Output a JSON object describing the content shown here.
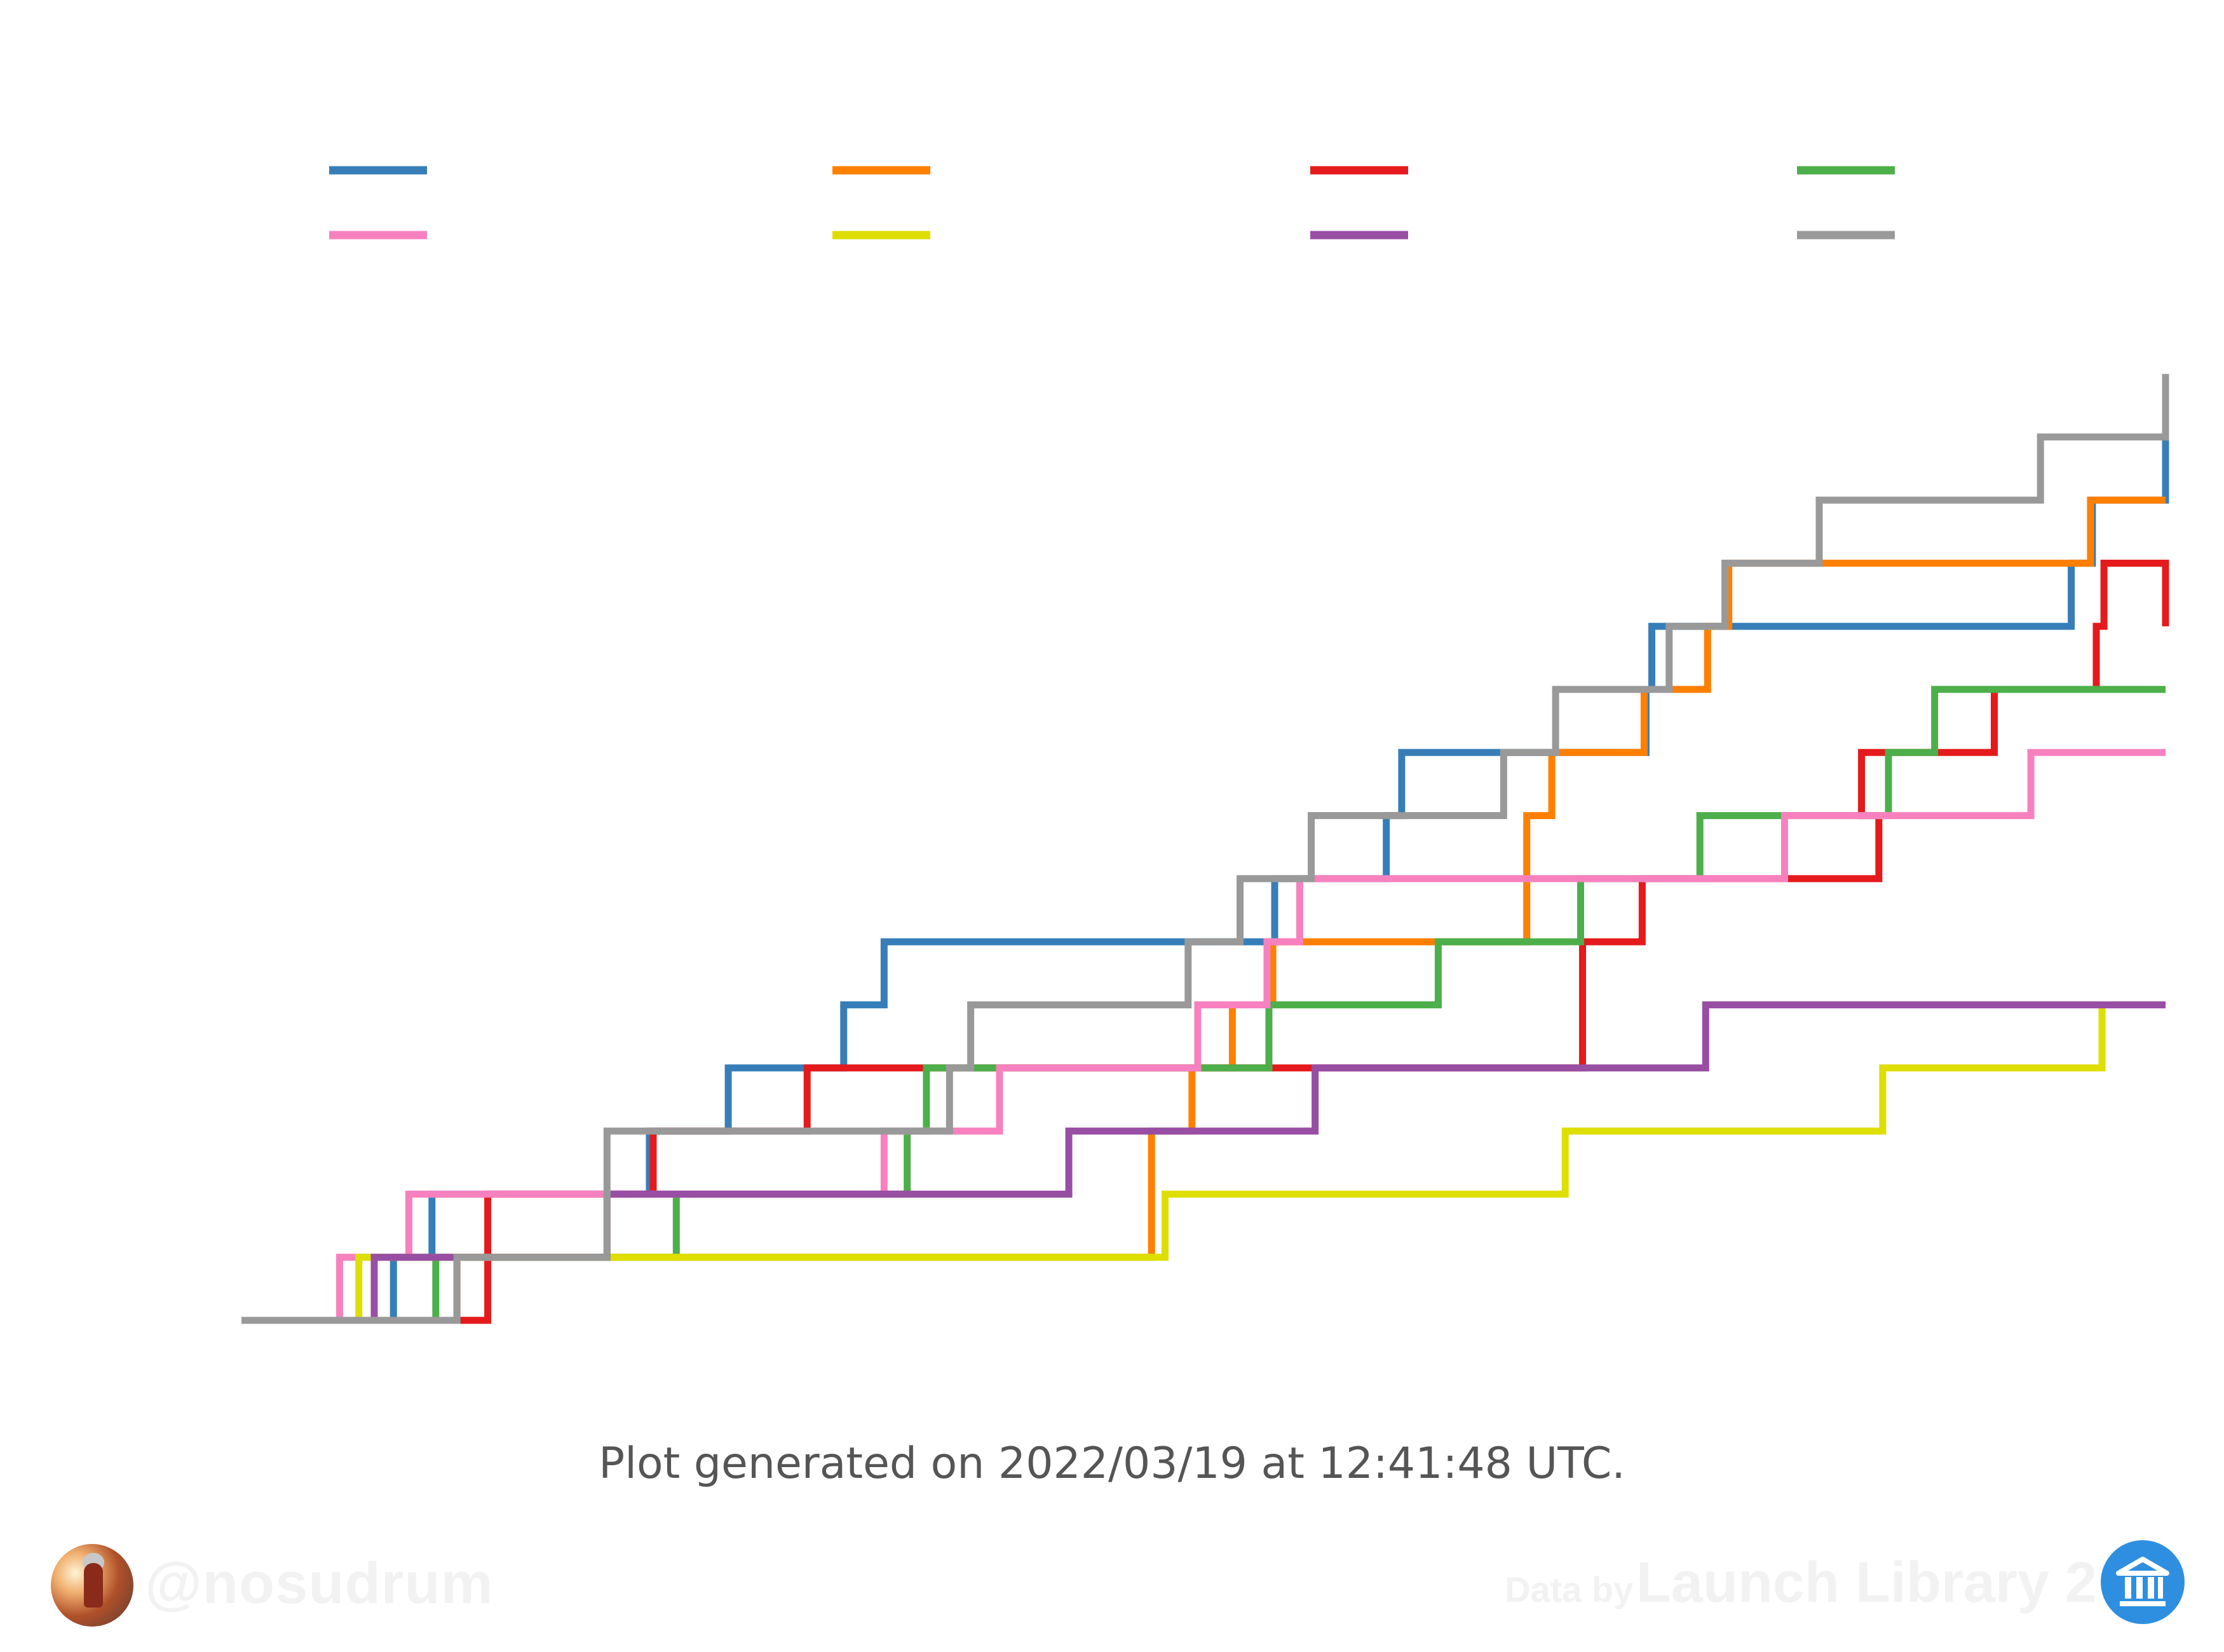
{
  "chart_data": {
    "type": "line",
    "step": true,
    "title": "",
    "xlabel": "",
    "ylabel": "",
    "ylim": [
      0,
      16
    ],
    "grid": false,
    "legend_placement": "top",
    "series": [
      {
        "color": "#377eb8",
        "points": [
          [
            0.0,
            0
          ],
          [
            0.079,
            1
          ],
          [
            0.099,
            2
          ],
          [
            0.212,
            3
          ],
          [
            0.253,
            4
          ],
          [
            0.313,
            5
          ],
          [
            0.334,
            6
          ],
          [
            0.537,
            7
          ],
          [
            0.595,
            8
          ],
          [
            0.603,
            9
          ],
          [
            0.73,
            10
          ],
          [
            0.733,
            11
          ],
          [
            0.951,
            12
          ],
          [
            0.962,
            13
          ],
          [
            1.0,
            14
          ]
        ]
      },
      {
        "color": "#ff7f00",
        "points": [
          [
            0.0,
            0
          ],
          [
            0.112,
            1
          ],
          [
            0.473,
            3
          ],
          [
            0.494,
            4
          ],
          [
            0.515,
            5
          ],
          [
            0.536,
            6
          ],
          [
            0.668,
            8
          ],
          [
            0.681,
            9
          ],
          [
            0.729,
            10
          ],
          [
            0.762,
            11
          ],
          [
            0.773,
            12
          ],
          [
            0.961,
            13
          ],
          [
            1.0,
            13
          ]
        ]
      },
      {
        "color": "#e41a1c",
        "points": [
          [
            0.0,
            0
          ],
          [
            0.128,
            2
          ],
          [
            0.214,
            3
          ],
          [
            0.294,
            4
          ],
          [
            0.697,
            6
          ],
          [
            0.728,
            7
          ],
          [
            0.851,
            8
          ],
          [
            0.842,
            9
          ],
          [
            0.911,
            10
          ],
          [
            0.964,
            11
          ],
          [
            0.968,
            12
          ],
          [
            0.979,
            12
          ],
          [
            1.0,
            11
          ]
        ]
      },
      {
        "color": "#4daf4a",
        "points": [
          [
            0.0,
            0
          ],
          [
            0.101,
            1
          ],
          [
            0.226,
            2
          ],
          [
            0.346,
            3
          ],
          [
            0.356,
            4
          ],
          [
            0.534,
            5
          ],
          [
            0.622,
            6
          ],
          [
            0.696,
            7
          ],
          [
            0.758,
            8
          ],
          [
            0.856,
            9
          ],
          [
            0.88,
            10
          ],
          [
            1.0,
            10
          ]
        ]
      },
      {
        "color": "#f781bf",
        "points": [
          [
            0.0,
            0
          ],
          [
            0.051,
            1
          ],
          [
            0.087,
            2
          ],
          [
            0.334,
            3
          ],
          [
            0.394,
            4
          ],
          [
            0.497,
            5
          ],
          [
            0.533,
            6
          ],
          [
            0.55,
            7
          ],
          [
            0.802,
            8
          ],
          [
            0.93,
            9
          ],
          [
            1.0,
            9
          ]
        ]
      },
      {
        "color": "#dede00",
        "points": [
          [
            0.0,
            0
          ],
          [
            0.061,
            1
          ],
          [
            0.48,
            2
          ],
          [
            0.688,
            3
          ],
          [
            0.853,
            4
          ],
          [
            0.967,
            5
          ],
          [
            1.0,
            5
          ]
        ]
      },
      {
        "color": "#984ea3",
        "points": [
          [
            0.0,
            0
          ],
          [
            0.069,
            1
          ],
          [
            0.19,
            2
          ],
          [
            0.43,
            3
          ],
          [
            0.558,
            4
          ],
          [
            0.761,
            5
          ],
          [
            1.0,
            5
          ]
        ]
      },
      {
        "color": "#999999",
        "points": [
          [
            0.0,
            0
          ],
          [
            0.112,
            1
          ],
          [
            0.19,
            3
          ],
          [
            0.368,
            4
          ],
          [
            0.379,
            5
          ],
          [
            0.492,
            6
          ],
          [
            0.519,
            7
          ],
          [
            0.556,
            8
          ],
          [
            0.656,
            9
          ],
          [
            0.683,
            10
          ],
          [
            0.742,
            11
          ],
          [
            0.771,
            12
          ],
          [
            0.82,
            13
          ],
          [
            0.935,
            14
          ],
          [
            1.0,
            15
          ]
        ]
      }
    ]
  },
  "footer": {
    "note": "Plot generated on 2022/03/19 at 12:41:48 UTC.",
    "credit_handle": "@nosudrum",
    "credit_source_small": "Data by",
    "credit_source_big": "Launch Library 2"
  },
  "icons": [
    "avatar",
    "launch-library-logo"
  ]
}
